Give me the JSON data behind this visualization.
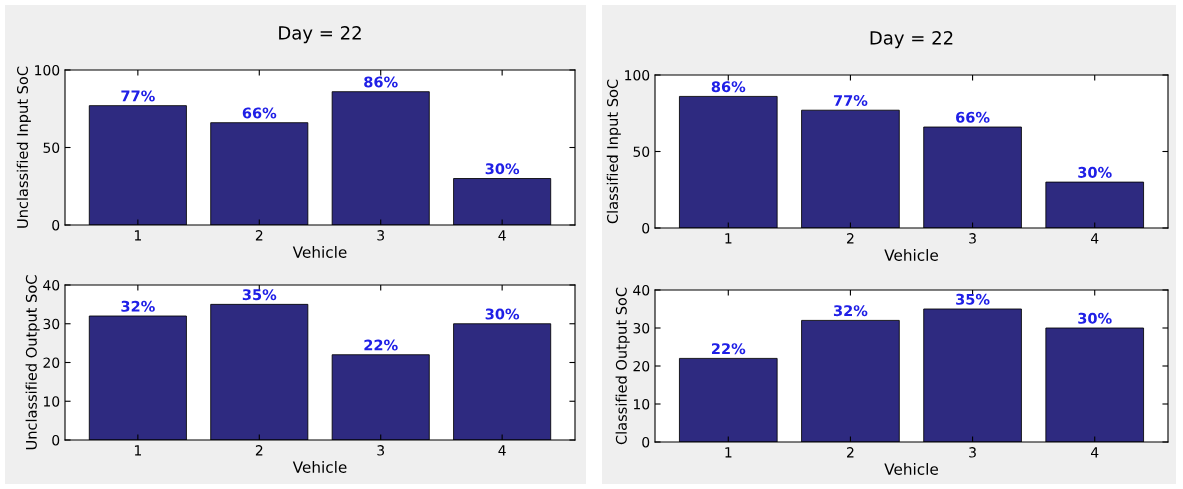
{
  "chart_data": [
    {
      "type": "bar",
      "title": "Day = 22",
      "xlabel": "Vehicle",
      "ylabel": "Unclassified Input SoC",
      "categories": [
        "1",
        "2",
        "3",
        "4"
      ],
      "values": [
        77,
        66,
        86,
        30
      ],
      "value_labels": [
        "77%",
        "66%",
        "86%",
        "30%"
      ],
      "color": "#2e2a80",
      "ylim": [
        0,
        100
      ],
      "yticks": [
        0,
        50,
        100
      ],
      "grid": false,
      "legend": false
    },
    {
      "type": "bar",
      "title": "Day = 22",
      "xlabel": "Vehicle",
      "ylabel": "Classified Input SoC",
      "categories": [
        "1",
        "2",
        "3",
        "4"
      ],
      "values": [
        86,
        77,
        66,
        30
      ],
      "value_labels": [
        "86%",
        "77%",
        "66%",
        "30%"
      ],
      "color": "#2e2a80",
      "ylim": [
        0,
        100
      ],
      "yticks": [
        0,
        50,
        100
      ],
      "grid": false,
      "legend": false
    },
    {
      "type": "bar",
      "xlabel": "Vehicle",
      "ylabel": "Unclassified Output SoC",
      "categories": [
        "1",
        "2",
        "3",
        "4"
      ],
      "values": [
        32,
        35,
        22,
        30
      ],
      "value_labels": [
        "32%",
        "35%",
        "22%",
        "30%"
      ],
      "color": "#2e2a80",
      "ylim": [
        0,
        40
      ],
      "yticks": [
        0,
        10,
        20,
        30,
        40
      ],
      "grid": false,
      "legend": false
    },
    {
      "type": "bar",
      "xlabel": "Vehicle",
      "ylabel": "Classified Output SoC",
      "categories": [
        "1",
        "2",
        "3",
        "4"
      ],
      "values": [
        22,
        32,
        35,
        30
      ],
      "value_labels": [
        "22%",
        "32%",
        "35%",
        "30%"
      ],
      "color": "#2e2a80",
      "ylim": [
        0,
        40
      ],
      "yticks": [
        0,
        10,
        20,
        30,
        40
      ],
      "grid": false,
      "legend": false
    }
  ]
}
